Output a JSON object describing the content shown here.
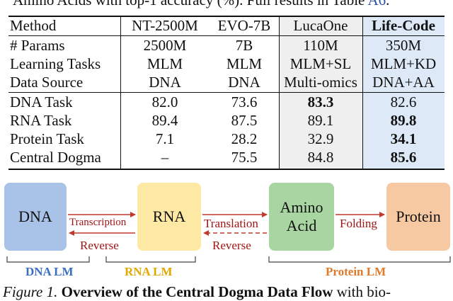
{
  "top_caption": {
    "text": "Amino Acids with top-1 accuracy (%). Full results in Table ",
    "link": "A6",
    "end": "."
  },
  "table": {
    "headers": [
      "Method",
      "NT-2500M",
      "EVO-7B",
      "LucaOne",
      "Life-Code"
    ],
    "meta_rows": [
      {
        "label": "# Params",
        "cells": [
          "2500M",
          "7B",
          "110M",
          "350M"
        ]
      },
      {
        "label": "Learning Tasks",
        "cells": [
          "MLM",
          "MLM",
          "MLM+SL",
          "MLM+KD"
        ]
      },
      {
        "label": "Data Source",
        "cells": [
          "DNA",
          "DNA",
          "Multi-omics",
          "DNA+AA"
        ]
      }
    ],
    "result_rows": [
      {
        "label": "DNA Task",
        "cells": [
          "82.0",
          "73.6",
          "83.3",
          "82.6"
        ],
        "bold_index": 2
      },
      {
        "label": "RNA Task",
        "cells": [
          "89.4",
          "87.5",
          "89.1",
          "89.8"
        ],
        "bold_index": 3
      },
      {
        "label": "Protein Task",
        "cells": [
          "7.1",
          "28.2",
          "32.9",
          "34.1"
        ],
        "bold_index": 3
      },
      {
        "label": "Central Dogma",
        "cells": [
          "–",
          "75.5",
          "84.8",
          "85.6"
        ],
        "bold_index": 3
      }
    ]
  },
  "figure": {
    "boxes": {
      "dna": "DNA",
      "rna": "RNA",
      "amino_line1": "Amino",
      "amino_line2": "Acid",
      "protein": "Protein"
    },
    "arrows": {
      "transcription": "Transcription",
      "reverse1": "Reverse",
      "translation": "Translation",
      "reverse2": "Reverse",
      "folding": "Folding"
    },
    "lm_labels": {
      "dna_lm": "DNA LM",
      "rna_lm": "RNA LM",
      "protein_lm": "Protein LM"
    },
    "colors": {
      "dna_box": "#a9c3e8",
      "rna_box": "#fde9a3",
      "amino_box": "#a8d5a2",
      "protein_box": "#f7c9a3",
      "arrow": "#c0392b",
      "dna_lm": "#3b6fc4",
      "rna_lm": "#e0a800",
      "protein_lm": "#e07a2a"
    }
  },
  "bottom_caption": {
    "prefix": "Figure 1.",
    "bold": "Overview of the Central Dogma Data Flow",
    "rest": "with bio-"
  }
}
